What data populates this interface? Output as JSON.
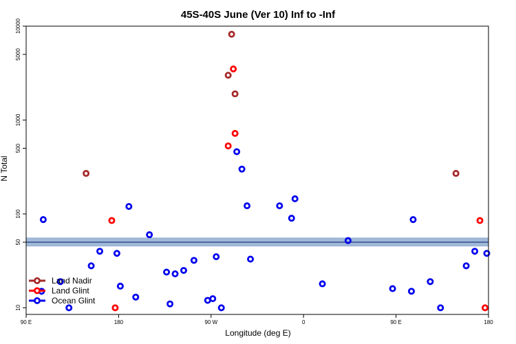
{
  "chart_data": {
    "type": "scatter",
    "title": "45S-40S June (Ver 10)   Inf to -Inf",
    "xlabel": "Longitude (deg E)",
    "ylabel": "N Total",
    "y_scale": "log",
    "xlim": [
      -90,
      180
    ],
    "ylim": [
      8.5,
      10000
    ],
    "x_ticks": [
      {
        "value": -90,
        "label": "90 E"
      },
      {
        "value": -36,
        "label": "180"
      },
      {
        "value": 18,
        "label": "90 W"
      },
      {
        "value": 72,
        "label": "0"
      },
      {
        "value": 126,
        "label": "90 E"
      },
      {
        "value": 180,
        "label": "180"
      }
    ],
    "y_ticks": [
      10,
      50,
      100,
      500,
      1000,
      5000,
      10000
    ],
    "reference_band": {
      "y_center": 50,
      "y_low": 45,
      "y_high": 56,
      "color": "#9fb8d8",
      "line_color": "#1f3a7a"
    },
    "legend": {
      "position": "bottom-left"
    },
    "series": [
      {
        "name": "Land Nadir",
        "color": "#a52a2a",
        "points": [
          {
            "x": -55,
            "y": 270
          },
          {
            "x": 30,
            "y": 8200
          },
          {
            "x": 28,
            "y": 3000
          },
          {
            "x": 32,
            "y": 1900
          },
          {
            "x": 161,
            "y": 270
          }
        ]
      },
      {
        "name": "Land Glint",
        "color": "#ff0000",
        "points": [
          {
            "x": -40,
            "y": 85
          },
          {
            "x": -38,
            "y": 10
          },
          {
            "x": 31,
            "y": 3500
          },
          {
            "x": 32,
            "y": 720
          },
          {
            "x": 28,
            "y": 530
          },
          {
            "x": 175,
            "y": 85
          },
          {
            "x": 178,
            "y": 10
          }
        ]
      },
      {
        "name": "Ocean Glint",
        "color": "#0000ee",
        "points": [
          {
            "x": -80,
            "y": 87
          },
          {
            "x": -81,
            "y": 15
          },
          {
            "x": -70,
            "y": 19
          },
          {
            "x": -65,
            "y": 10
          },
          {
            "x": -52,
            "y": 28
          },
          {
            "x": -47,
            "y": 40
          },
          {
            "x": -37,
            "y": 38
          },
          {
            "x": -35,
            "y": 17
          },
          {
            "x": -30,
            "y": 120
          },
          {
            "x": -26,
            "y": 13
          },
          {
            "x": -18,
            "y": 60
          },
          {
            "x": -8,
            "y": 24
          },
          {
            "x": -6,
            "y": 11
          },
          {
            "x": -3,
            "y": 23
          },
          {
            "x": 2,
            "y": 25
          },
          {
            "x": 8,
            "y": 32
          },
          {
            "x": 16,
            "y": 12
          },
          {
            "x": 19,
            "y": 12.5
          },
          {
            "x": 21,
            "y": 35
          },
          {
            "x": 24,
            "y": 10
          },
          {
            "x": 33,
            "y": 460
          },
          {
            "x": 36,
            "y": 300
          },
          {
            "x": 39,
            "y": 122
          },
          {
            "x": 41,
            "y": 33
          },
          {
            "x": 58,
            "y": 122
          },
          {
            "x": 65,
            "y": 90
          },
          {
            "x": 67,
            "y": 145
          },
          {
            "x": 83,
            "y": 18
          },
          {
            "x": 98,
            "y": 52
          },
          {
            "x": 124,
            "y": 16
          },
          {
            "x": 135,
            "y": 15
          },
          {
            "x": 136,
            "y": 87
          },
          {
            "x": 146,
            "y": 19
          },
          {
            "x": 152,
            "y": 10
          },
          {
            "x": 167,
            "y": 28
          },
          {
            "x": 172,
            "y": 40
          },
          {
            "x": 179,
            "y": 38
          }
        ]
      }
    ]
  }
}
